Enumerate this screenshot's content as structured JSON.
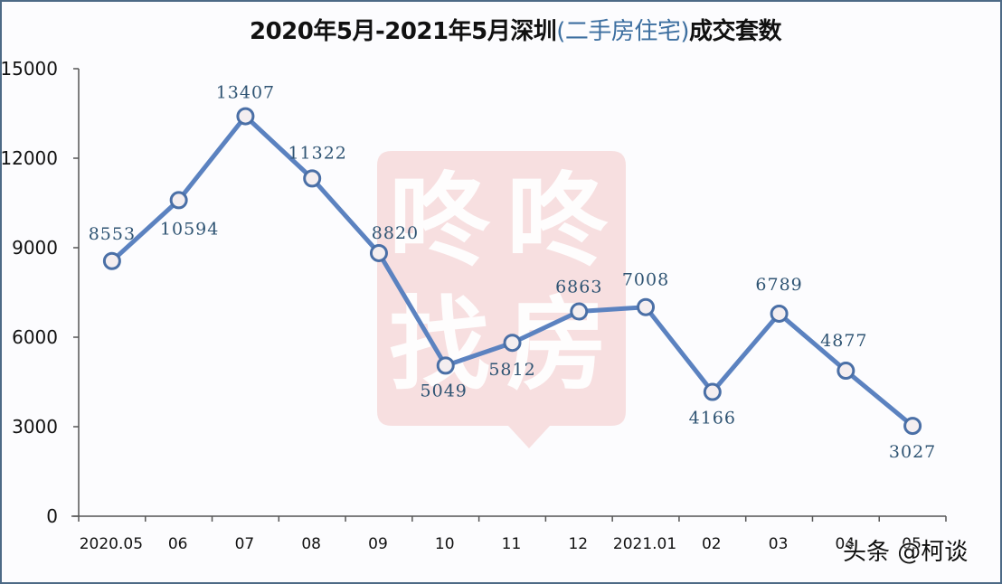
{
  "title": {
    "prefix": "2020年5月-2021年5月深圳",
    "accent": "(二手房住宅)",
    "suffix": "成交套数"
  },
  "watermark": {
    "logo_chars": [
      "咚",
      "咚",
      "找",
      "房"
    ],
    "logo_color": "#f6d9da",
    "credit": "头条 @柯谈"
  },
  "colors": {
    "line": "#5b82c0",
    "marker_stroke": "#4a6fa6",
    "marker_fill": "#f4eef0",
    "data_label": "#2f5473",
    "axis": "#555555",
    "border": "#4d6a86"
  },
  "chart_data": {
    "type": "line",
    "title": "2020年5月-2021年5月深圳(二手房住宅)成交套数",
    "xlabel": "",
    "ylabel": "",
    "categories": [
      "2020.05",
      "06",
      "07",
      "08",
      "09",
      "10",
      "11",
      "12",
      "2021.01",
      "02",
      "03",
      "04",
      "05"
    ],
    "series": [
      {
        "name": "成交套数",
        "values": [
          8553,
          10594,
          13407,
          11322,
          8820,
          5049,
          5812,
          6863,
          7008,
          4166,
          6789,
          4877,
          3027
        ]
      }
    ],
    "yticks": [
      0,
      3000,
      6000,
      9000,
      12000,
      15000
    ],
    "ylim": [
      0,
      15000
    ],
    "grid": false,
    "legend": "none",
    "data_labels": true
  }
}
